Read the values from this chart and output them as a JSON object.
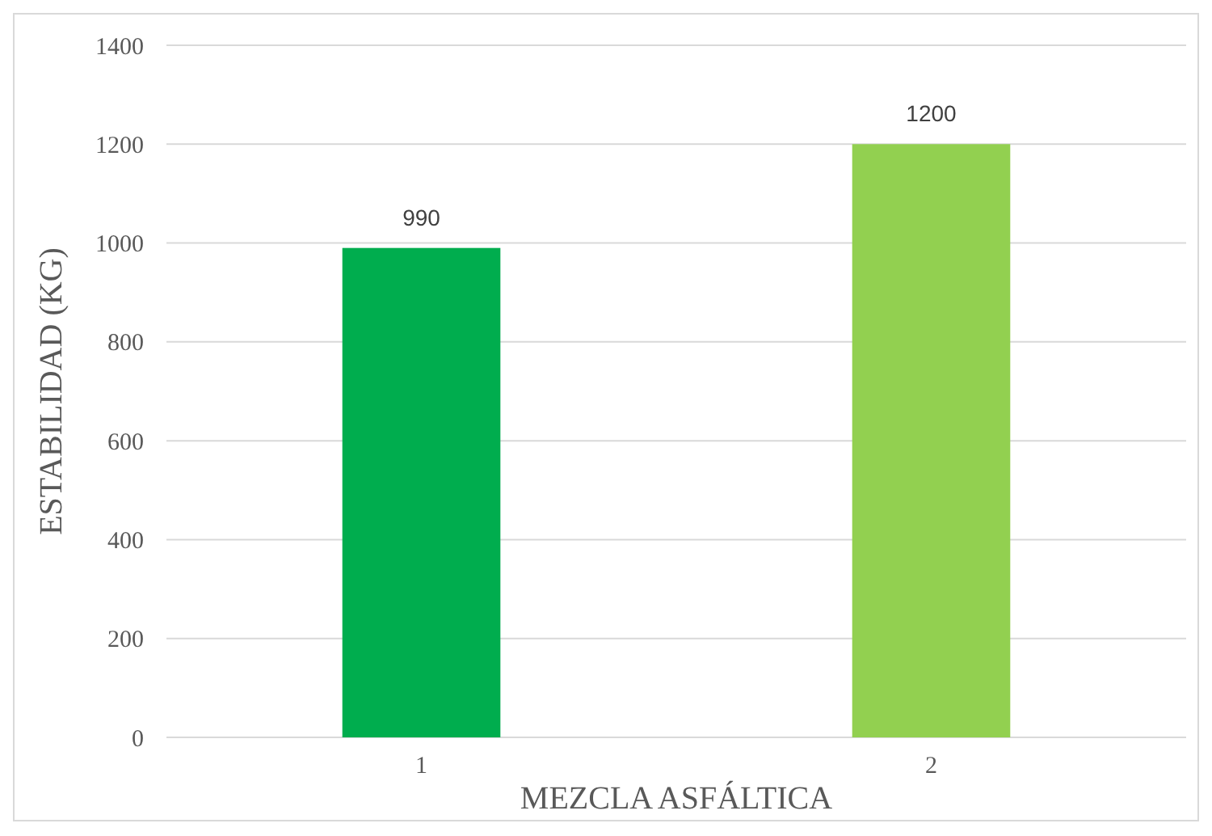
{
  "chart_data": {
    "type": "bar",
    "xlabel": "MEZCLA ASFÁLTICA",
    "ylabel": "ESTABILIDAD (KG)",
    "categories": [
      "1",
      "2"
    ],
    "values": [
      990,
      1200
    ],
    "colors": [
      "#00ad4e",
      "#92d050"
    ],
    "ylim": [
      0,
      1400
    ],
    "yticks": [
      0,
      200,
      400,
      600,
      800,
      1000,
      1200,
      1400
    ],
    "grid": "y",
    "data_labels": true
  }
}
